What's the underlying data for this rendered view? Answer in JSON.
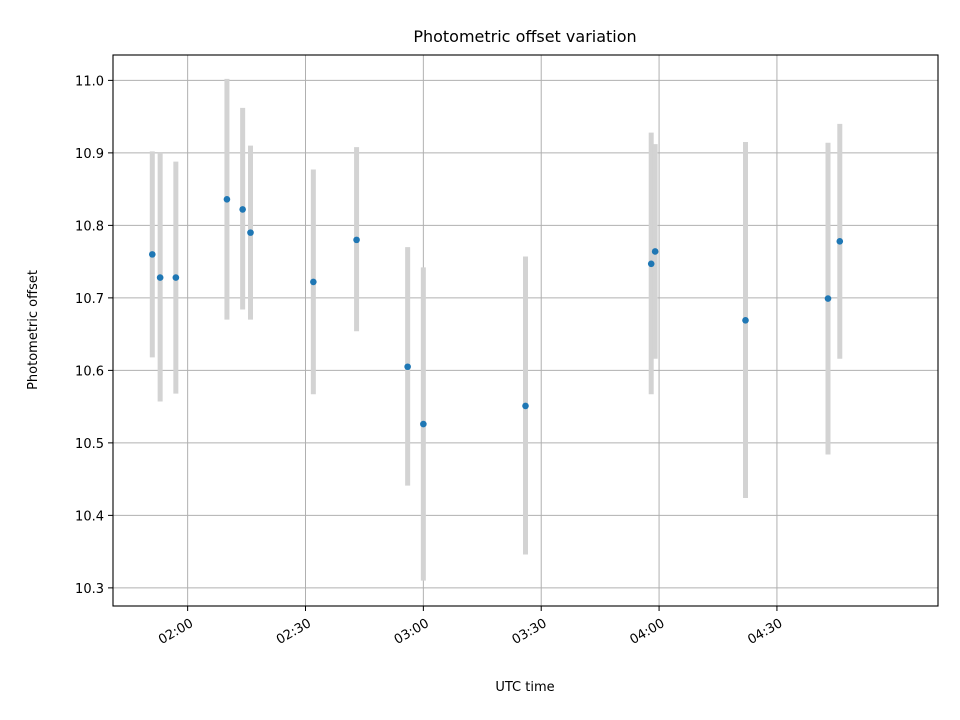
{
  "chart_data": {
    "type": "scatter",
    "title": "Photometric offset variation",
    "xlabel": "UTC time",
    "ylabel": "Photometric offset",
    "x_tick_labels": [
      "02:00",
      "02:30",
      "03:00",
      "03:30",
      "04:00",
      "04:30"
    ],
    "y_tick_labels": [
      "10.3",
      "10.4",
      "10.5",
      "10.6",
      "10.7",
      "10.8",
      "10.9",
      "11.0"
    ],
    "xlim": [
      "01:41",
      "05:11"
    ],
    "ylim": [
      10.275,
      11.035
    ],
    "grid": true,
    "colors": {
      "marker": "#1f77b4",
      "errorbar": "#d3d3d3",
      "grid": "#b0b0b0"
    },
    "points": [
      {
        "x": "01:51",
        "y": 10.76,
        "yerr_low": 10.618,
        "yerr_high": 10.902
      },
      {
        "x": "01:53",
        "y": 10.728,
        "yerr_low": 10.557,
        "yerr_high": 10.9
      },
      {
        "x": "01:57",
        "y": 10.728,
        "yerr_low": 10.568,
        "yerr_high": 10.888
      },
      {
        "x": "02:10",
        "y": 10.836,
        "yerr_low": 10.67,
        "yerr_high": 11.002
      },
      {
        "x": "02:14",
        "y": 10.822,
        "yerr_low": 10.684,
        "yerr_high": 10.962
      },
      {
        "x": "02:16",
        "y": 10.79,
        "yerr_low": 10.67,
        "yerr_high": 10.91
      },
      {
        "x": "02:32",
        "y": 10.722,
        "yerr_low": 10.567,
        "yerr_high": 10.877
      },
      {
        "x": "02:43",
        "y": 10.78,
        "yerr_low": 10.654,
        "yerr_high": 10.908
      },
      {
        "x": "02:56",
        "y": 10.605,
        "yerr_low": 10.441,
        "yerr_high": 10.77
      },
      {
        "x": "03:00",
        "y": 10.526,
        "yerr_low": 10.31,
        "yerr_high": 10.742
      },
      {
        "x": "03:26",
        "y": 10.551,
        "yerr_low": 10.346,
        "yerr_high": 10.757
      },
      {
        "x": "03:58",
        "y": 10.747,
        "yerr_low": 10.567,
        "yerr_high": 10.928
      },
      {
        "x": "03:59",
        "y": 10.764,
        "yerr_low": 10.616,
        "yerr_high": 10.912
      },
      {
        "x": "04:22",
        "y": 10.669,
        "yerr_low": 10.424,
        "yerr_high": 10.915
      },
      {
        "x": "04:43",
        "y": 10.699,
        "yerr_low": 10.484,
        "yerr_high": 10.914
      },
      {
        "x": "04:46",
        "y": 10.778,
        "yerr_low": 10.616,
        "yerr_high": 10.94
      }
    ]
  }
}
